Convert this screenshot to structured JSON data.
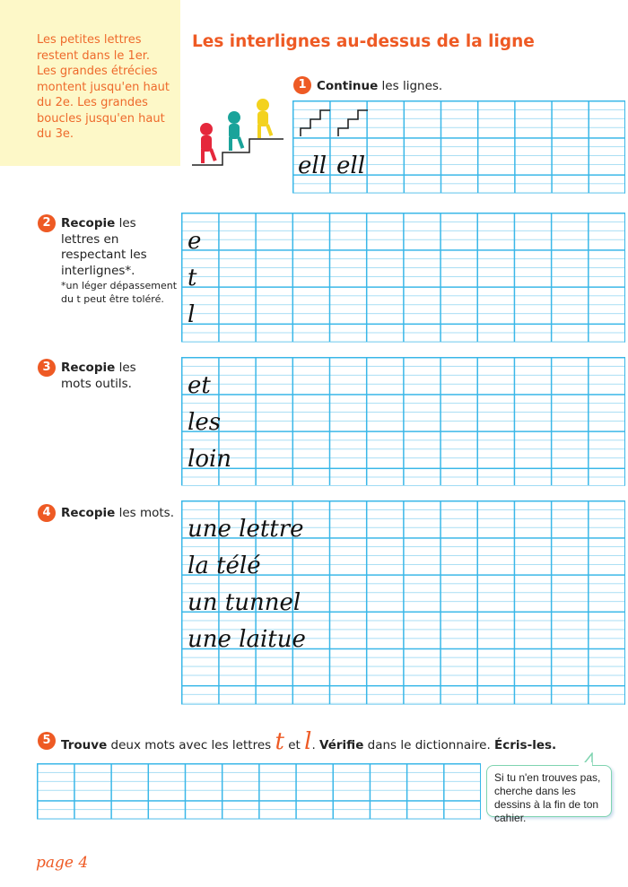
{
  "tip": {
    "text": "Les petites lettres restent dans le 1er. Les grandes étrécies montent jusqu'en haut du 2e. Les grandes boucles jusqu'en haut du 3e."
  },
  "title": "Les interlignes au-dessus de la ligne",
  "exercises": [
    {
      "num": "1",
      "verb": "Continue",
      "rest": " les lignes.",
      "models": [
        "ell",
        "ell"
      ]
    },
    {
      "num": "2",
      "verb": "Recopie",
      "rest": " les lettres en respectant les interlignes*.",
      "note": "*un léger dépassement du t peut être toléré.",
      "models": [
        "e",
        "t",
        "l"
      ]
    },
    {
      "num": "3",
      "verb": "Recopie",
      "rest": " les mots outils.",
      "models": [
        "et",
        "les",
        "loin"
      ]
    },
    {
      "num": "4",
      "verb": "Recopie",
      "rest": " les mots.",
      "models": [
        "une lettre",
        "la télé",
        "un tunnel",
        "une laitue"
      ]
    },
    {
      "num": "5",
      "verb": "Trouve",
      "rest1": " deux mots avec les lettres ",
      "letter1": "t",
      "mid": " et ",
      "letter2": "l",
      "dot": ". ",
      "verb2": "Vérifie",
      "rest2": " dans le dictionnaire. ",
      "verb3": "Écris-les."
    }
  ],
  "bubble": "Si tu n'en trouves pas, cherche dans les dessins à la fin de ton cahier.",
  "page": "page 4",
  "colors": {
    "accent": "#ee5a24",
    "grid": "#39b7e8",
    "tip_bg": "#fdf8c8"
  }
}
